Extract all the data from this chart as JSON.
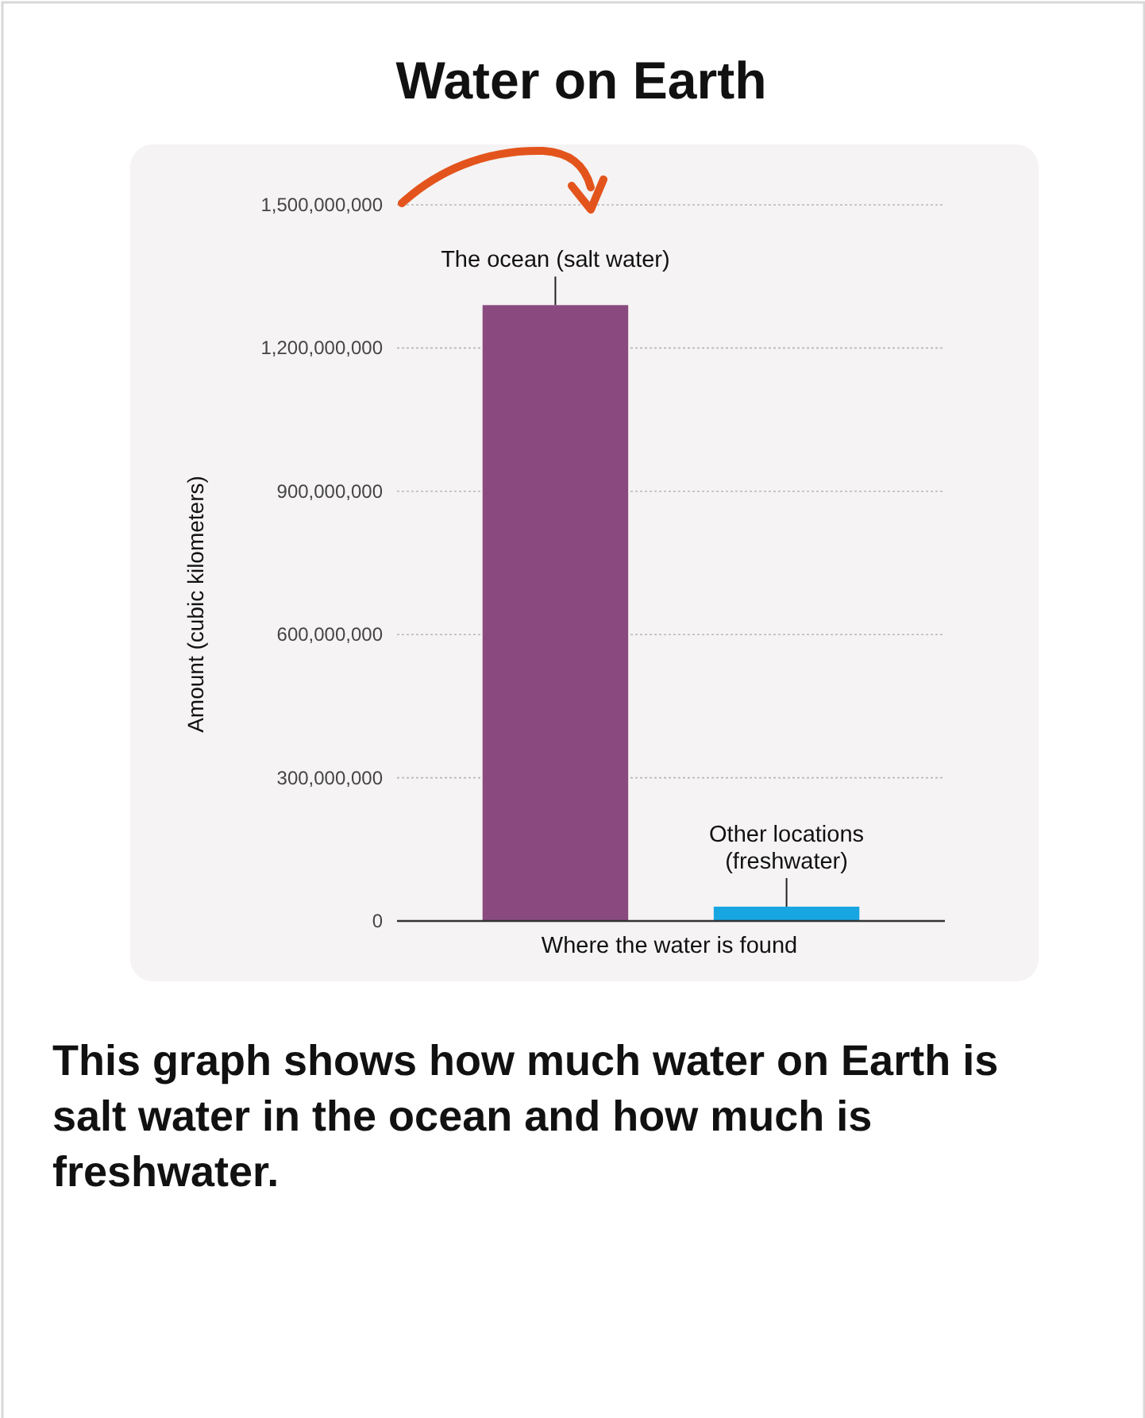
{
  "chart_data": {
    "type": "bar",
    "title": "Water on Earth",
    "ylabel": "Amount (cubic kilometers)",
    "xlabel": "Where the water is found",
    "categories": [
      "The ocean (salt water)",
      "Other locations (freshwater)"
    ],
    "colors": [
      "#8a4a7f",
      "#18a6e2"
    ],
    "values": [
      1290000000,
      30000000
    ],
    "ylim": [
      0,
      1500000000
    ],
    "yticks": [
      {
        "value": 0,
        "label": "0"
      },
      {
        "value": 300000000,
        "label": "300,000,000"
      },
      {
        "value": 600000000,
        "label": "600,000,000"
      },
      {
        "value": 900000000,
        "label": "900,000,000"
      },
      {
        "value": 1200000000,
        "label": "1,200,000,000"
      },
      {
        "value": 1500000000,
        "label": "1,500,000,000"
      }
    ],
    "grid": "y",
    "annotations": [
      "This graph shows how much water on Earth is salt water in the ocean and how much is freshwater."
    ]
  }
}
